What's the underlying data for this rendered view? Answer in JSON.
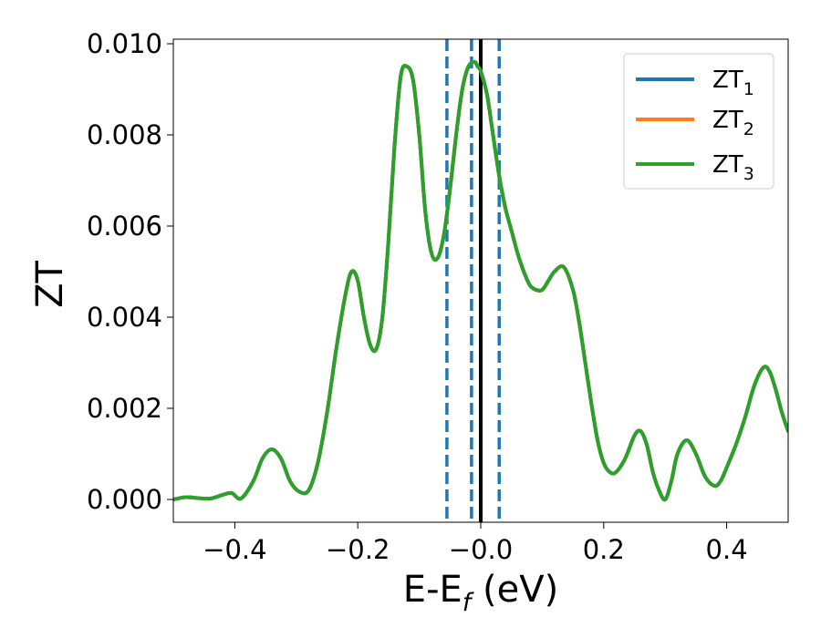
{
  "chart_data": {
    "type": "line",
    "xlabel": "E-E",
    "xlabel_sub": "f",
    "xlabel_unit": " (eV)",
    "ylabel": "ZT",
    "xlim": [
      -0.5,
      0.5
    ],
    "ylim": [
      -0.0005,
      0.0101
    ],
    "xticks": [
      -0.4,
      -0.2,
      0.0,
      0.2,
      0.4
    ],
    "xtick_labels": [
      "−0.4",
      "−0.2",
      "−0.0",
      "0.2",
      "0.4"
    ],
    "yticks": [
      0.0,
      0.002,
      0.004,
      0.006,
      0.008,
      0.01
    ],
    "ytick_labels": [
      "0.000",
      "0.002",
      "0.004",
      "0.006",
      "0.008",
      "0.010"
    ],
    "grid": false,
    "legend_position": "top-right",
    "colors": {
      "ZT1": "#1f77b4",
      "ZT2": "#ff7f0e",
      "ZT3": "#2ca02c",
      "fermi": "#000000"
    },
    "series": [
      {
        "name": "ZT",
        "sub": "1",
        "color": "#1f77b4",
        "same_as": "ZT3"
      },
      {
        "name": "ZT",
        "sub": "2",
        "color": "#ff7f0e",
        "same_as": "ZT3"
      },
      {
        "name": "ZT",
        "sub": "3",
        "color": "#2ca02c",
        "x": [
          -0.5,
          -0.48,
          -0.46,
          -0.44,
          -0.42,
          -0.405,
          -0.39,
          -0.37,
          -0.355,
          -0.34,
          -0.325,
          -0.31,
          -0.295,
          -0.28,
          -0.265,
          -0.25,
          -0.235,
          -0.22,
          -0.21,
          -0.2,
          -0.19,
          -0.18,
          -0.17,
          -0.16,
          -0.15,
          -0.14,
          -0.13,
          -0.12,
          -0.11,
          -0.1,
          -0.09,
          -0.08,
          -0.07,
          -0.06,
          -0.05,
          -0.04,
          -0.03,
          -0.02,
          -0.01,
          -0.005,
          0.0,
          0.01,
          0.02,
          0.03,
          0.04,
          0.05,
          0.06,
          0.07,
          0.08,
          0.09,
          0.1,
          0.11,
          0.12,
          0.135,
          0.15,
          0.16,
          0.17,
          0.18,
          0.19,
          0.2,
          0.21,
          0.22,
          0.235,
          0.25,
          0.26,
          0.27,
          0.28,
          0.29,
          0.3,
          0.31,
          0.32,
          0.335,
          0.35,
          0.365,
          0.38,
          0.39,
          0.4,
          0.415,
          0.43,
          0.445,
          0.46,
          0.47,
          0.48,
          0.49,
          0.5
        ],
        "y": [
          0.0,
          5e-05,
          3e-05,
          2e-05,
          0.0001,
          0.00014,
          2e-05,
          0.0004,
          0.0009,
          0.0011,
          0.0009,
          0.0004,
          0.00017,
          0.0002,
          0.0008,
          0.0019,
          0.0033,
          0.0045,
          0.005,
          0.0048,
          0.004,
          0.0034,
          0.0033,
          0.004,
          0.0057,
          0.0078,
          0.0093,
          0.0095,
          0.0092,
          0.008,
          0.0063,
          0.0054,
          0.0053,
          0.0058,
          0.0068,
          0.008,
          0.009,
          0.0095,
          0.0096,
          0.0095,
          0.0094,
          0.0089,
          0.008,
          0.0071,
          0.0064,
          0.0059,
          0.0054,
          0.005,
          0.0047,
          0.0046,
          0.0046,
          0.0048,
          0.005,
          0.0051,
          0.0046,
          0.0039,
          0.003,
          0.0021,
          0.0013,
          0.0008,
          0.0006,
          0.0006,
          0.0009,
          0.0014,
          0.0015,
          0.0012,
          0.0006,
          0.0002,
          0.0,
          0.0004,
          0.001,
          0.0013,
          0.001,
          0.0005,
          0.0003,
          0.0004,
          0.0007,
          0.0012,
          0.0018,
          0.0025,
          0.0029,
          0.0028,
          0.0024,
          0.0019,
          0.0015
        ]
      }
    ],
    "vlines": [
      {
        "x": -0.055,
        "style": "dashed",
        "color": "#1f77b4"
      },
      {
        "x": -0.015,
        "style": "dashed",
        "color": "#1f77b4"
      },
      {
        "x": 0.0,
        "style": "solid",
        "color": "#000000"
      },
      {
        "x": 0.03,
        "style": "dashed",
        "color": "#1f77b4"
      }
    ]
  }
}
